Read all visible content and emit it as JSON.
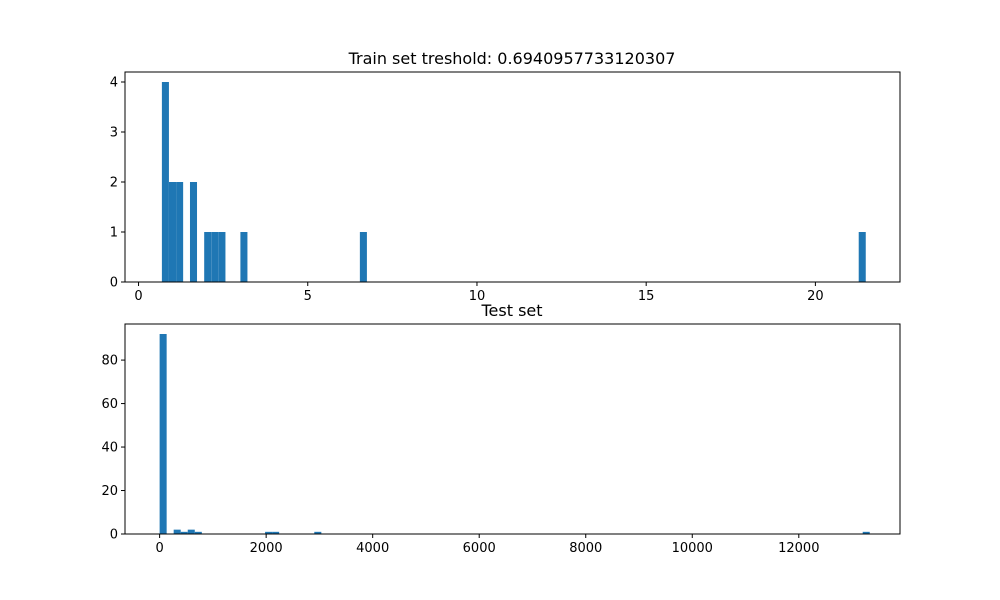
{
  "chart_data": [
    {
      "type": "bar",
      "title": "Train set treshold: 0.6940957733120307",
      "xlabel": "",
      "ylabel": "",
      "xlim": [
        -0.4,
        22.5
      ],
      "ylim": [
        0,
        4.2
      ],
      "xticks": [
        0,
        5,
        10,
        15,
        20
      ],
      "yticks": [
        0,
        1,
        2,
        3,
        4
      ],
      "grid": false,
      "bar_color": "#1f77b4",
      "bin_width": 0.208,
      "bins": [
        {
          "x": 0.69,
          "count": 4
        },
        {
          "x": 0.9,
          "count": 2
        },
        {
          "x": 1.11,
          "count": 2
        },
        {
          "x": 1.52,
          "count": 2
        },
        {
          "x": 1.94,
          "count": 1
        },
        {
          "x": 2.15,
          "count": 1
        },
        {
          "x": 2.36,
          "count": 1
        },
        {
          "x": 3.01,
          "count": 1
        },
        {
          "x": 6.54,
          "count": 1
        },
        {
          "x": 21.28,
          "count": 1
        }
      ]
    },
    {
      "type": "bar",
      "title": "Test set",
      "xlabel": "",
      "ylabel": "",
      "xlim": [
        -650,
        13900
      ],
      "ylim": [
        0,
        96.6
      ],
      "xticks": [
        0,
        2000,
        4000,
        6000,
        8000,
        10000,
        12000
      ],
      "yticks": [
        0,
        20,
        40,
        60,
        80
      ],
      "grid": false,
      "bar_color": "#1f77b4",
      "bin_width": 132,
      "bins": [
        {
          "x": 0,
          "count": 92
        },
        {
          "x": 264,
          "count": 2
        },
        {
          "x": 396,
          "count": 1
        },
        {
          "x": 528,
          "count": 2
        },
        {
          "x": 660,
          "count": 1
        },
        {
          "x": 1980,
          "count": 1
        },
        {
          "x": 2112,
          "count": 1
        },
        {
          "x": 2904,
          "count": 1
        },
        {
          "x": 13200,
          "count": 1
        }
      ]
    }
  ]
}
